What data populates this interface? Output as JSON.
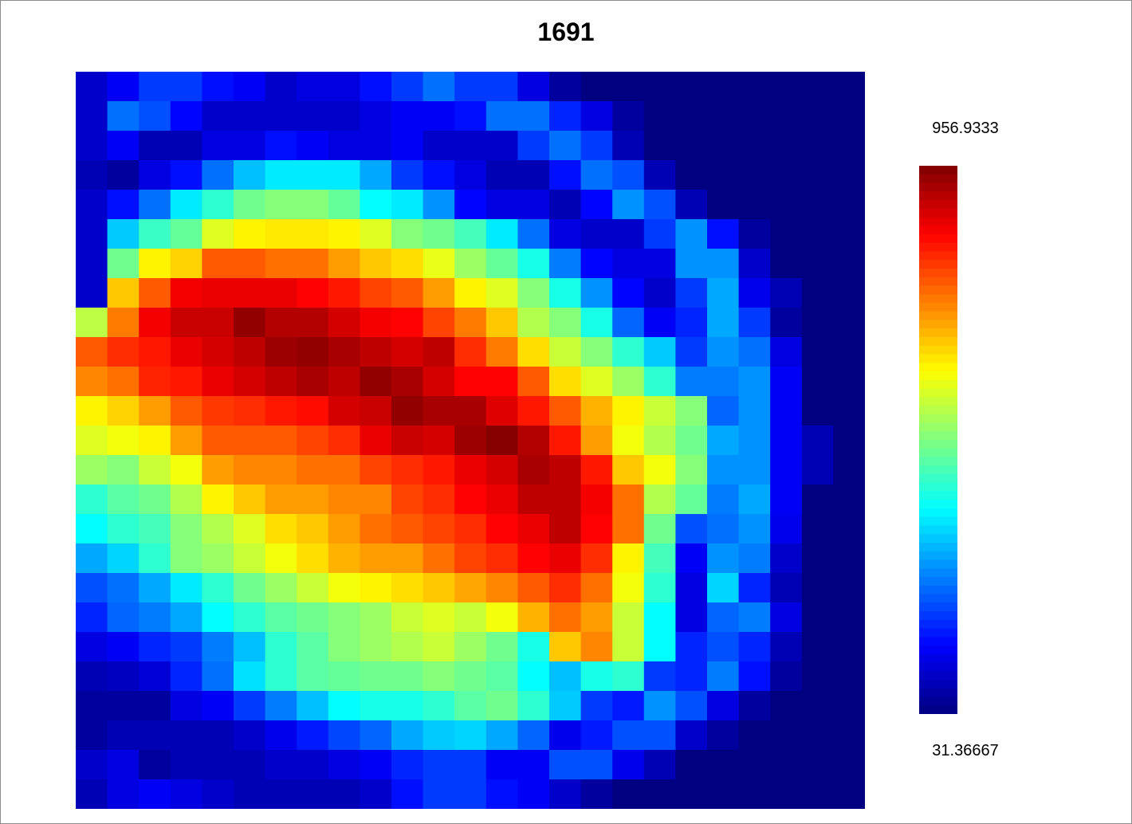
{
  "chart_data": {
    "type": "heatmap",
    "title": "1691",
    "color_scale": {
      "max_label": "956.9333",
      "min_label": "31.36667",
      "max": 956.9333,
      "min": 31.36667,
      "colormap": "jet"
    },
    "rows": 25,
    "cols": 25,
    "values": [
      [
        100,
        140,
        200,
        200,
        160,
        140,
        100,
        120,
        120,
        160,
        200,
        250,
        200,
        200,
        120,
        60,
        31,
        31,
        31,
        31,
        31,
        31,
        31,
        31,
        31
      ],
      [
        100,
        250,
        220,
        150,
        100,
        100,
        100,
        100,
        100,
        120,
        140,
        140,
        160,
        250,
        250,
        180,
        120,
        60,
        31,
        31,
        31,
        31,
        31,
        31,
        31
      ],
      [
        100,
        140,
        80,
        80,
        120,
        120,
        160,
        140,
        120,
        120,
        140,
        100,
        100,
        100,
        200,
        250,
        200,
        80,
        31,
        31,
        31,
        31,
        31,
        31,
        31
      ],
      [
        80,
        60,
        120,
        160,
        250,
        320,
        360,
        360,
        360,
        300,
        200,
        160,
        120,
        80,
        80,
        160,
        250,
        220,
        80,
        31,
        31,
        31,
        31,
        31,
        31
      ],
      [
        100,
        160,
        250,
        360,
        420,
        480,
        500,
        500,
        470,
        380,
        360,
        280,
        150,
        120,
        120,
        80,
        150,
        280,
        220,
        80,
        31,
        31,
        31,
        31,
        31
      ],
      [
        100,
        330,
        430,
        470,
        580,
        620,
        630,
        630,
        620,
        580,
        500,
        480,
        440,
        360,
        250,
        120,
        100,
        100,
        200,
        280,
        160,
        60,
        31,
        31,
        31
      ],
      [
        100,
        480,
        620,
        650,
        760,
        760,
        740,
        740,
        700,
        660,
        640,
        590,
        520,
        470,
        400,
        260,
        150,
        120,
        120,
        280,
        280,
        100,
        31,
        31,
        31
      ],
      [
        100,
        660,
        760,
        850,
        860,
        860,
        860,
        840,
        820,
        780,
        760,
        700,
        620,
        580,
        500,
        400,
        280,
        150,
        100,
        200,
        300,
        130,
        80,
        31,
        31
      ],
      [
        550,
        730,
        850,
        890,
        890,
        940,
        910,
        910,
        880,
        850,
        840,
        780,
        730,
        660,
        540,
        500,
        400,
        240,
        140,
        180,
        300,
        200,
        60,
        31,
        31
      ],
      [
        760,
        800,
        820,
        860,
        880,
        900,
        930,
        940,
        920,
        900,
        880,
        900,
        800,
        730,
        640,
        560,
        500,
        420,
        330,
        200,
        280,
        250,
        120,
        31,
        31
      ],
      [
        720,
        740,
        810,
        820,
        860,
        880,
        900,
        920,
        900,
        940,
        920,
        880,
        840,
        840,
        760,
        640,
        580,
        520,
        420,
        260,
        260,
        280,
        140,
        31,
        31
      ],
      [
        620,
        650,
        700,
        760,
        790,
        800,
        820,
        830,
        880,
        890,
        940,
        920,
        920,
        870,
        820,
        760,
        680,
        620,
        560,
        500,
        240,
        280,
        140,
        31,
        31
      ],
      [
        580,
        600,
        620,
        700,
        760,
        760,
        760,
        780,
        800,
        860,
        890,
        880,
        930,
        950,
        910,
        820,
        700,
        600,
        540,
        480,
        300,
        280,
        140,
        80,
        31
      ],
      [
        520,
        500,
        560,
        600,
        700,
        720,
        720,
        740,
        740,
        780,
        800,
        820,
        860,
        880,
        920,
        900,
        820,
        660,
        600,
        500,
        280,
        280,
        140,
        80,
        31
      ],
      [
        420,
        460,
        480,
        540,
        620,
        660,
        700,
        700,
        720,
        720,
        780,
        800,
        840,
        860,
        900,
        900,
        850,
        740,
        540,
        470,
        260,
        300,
        140,
        31,
        31
      ],
      [
        380,
        420,
        440,
        500,
        540,
        580,
        640,
        660,
        700,
        740,
        760,
        780,
        800,
        840,
        860,
        900,
        840,
        740,
        480,
        220,
        250,
        280,
        130,
        31,
        31
      ],
      [
        300,
        340,
        420,
        500,
        520,
        560,
        600,
        640,
        680,
        700,
        700,
        740,
        780,
        800,
        840,
        860,
        800,
        620,
        440,
        140,
        280,
        260,
        100,
        31,
        31
      ],
      [
        220,
        250,
        300,
        360,
        420,
        480,
        520,
        560,
        600,
        620,
        640,
        660,
        690,
        720,
        760,
        800,
        740,
        600,
        420,
        120,
        340,
        180,
        80,
        31,
        31
      ],
      [
        180,
        240,
        260,
        300,
        380,
        420,
        460,
        480,
        500,
        520,
        560,
        580,
        560,
        600,
        680,
        740,
        700,
        560,
        380,
        120,
        240,
        260,
        120,
        31,
        31
      ],
      [
        120,
        140,
        180,
        200,
        260,
        320,
        420,
        460,
        500,
        520,
        540,
        560,
        520,
        480,
        400,
        660,
        720,
        560,
        380,
        180,
        220,
        180,
        80,
        31,
        31
      ],
      [
        80,
        90,
        110,
        180,
        250,
        350,
        420,
        460,
        470,
        480,
        480,
        500,
        480,
        460,
        380,
        320,
        400,
        420,
        200,
        180,
        260,
        160,
        60,
        31,
        31
      ],
      [
        60,
        60,
        60,
        120,
        140,
        200,
        260,
        320,
        380,
        400,
        400,
        420,
        460,
        480,
        420,
        330,
        200,
        170,
        280,
        220,
        120,
        60,
        31,
        31,
        31
      ],
      [
        60,
        80,
        80,
        80,
        80,
        100,
        130,
        170,
        210,
        240,
        300,
        330,
        340,
        300,
        240,
        130,
        170,
        220,
        220,
        100,
        60,
        31,
        31,
        31,
        31
      ],
      [
        100,
        120,
        60,
        80,
        80,
        80,
        100,
        100,
        120,
        140,
        180,
        200,
        200,
        140,
        140,
        220,
        220,
        130,
        80,
        31,
        31,
        31,
        31,
        31,
        31
      ],
      [
        80,
        120,
        140,
        120,
        100,
        80,
        80,
        80,
        80,
        100,
        160,
        200,
        200,
        160,
        140,
        100,
        60,
        31,
        31,
        31,
        31,
        31,
        31,
        31,
        31
      ]
    ]
  }
}
